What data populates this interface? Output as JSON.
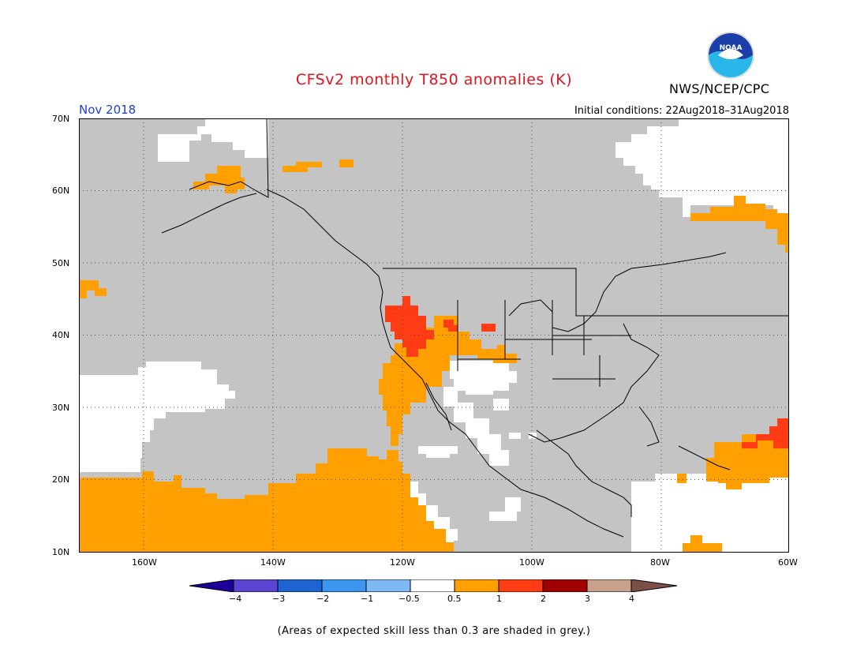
{
  "header": {
    "title": "CFSv2 monthly T850 anomalies (K)",
    "agency": "NWS/NCEP/CPC",
    "logo_text": "NOAA",
    "month": "Nov 2018",
    "initial_conditions": "Initial conditions: 22Aug2018–31Aug2018"
  },
  "map": {
    "lat_labels": [
      "70N",
      "60N",
      "50N",
      "40N",
      "30N",
      "20N",
      "10N"
    ],
    "lon_labels": [
      "160W",
      "140W",
      "120W",
      "100W",
      "80W",
      "60W"
    ],
    "extent": {
      "lon": [
        -170,
        -60
      ],
      "lat": [
        10,
        70
      ]
    },
    "colors": {
      "skill_mask_grey": "#c4c4c4",
      "anom_0_5_to_1": "#ffa000",
      "anom_1_to_2": "#ff3c14",
      "coastline": "#000000"
    }
  },
  "colorbar": {
    "labels": [
      "−4",
      "−3",
      "−2",
      "−1",
      "−0.5",
      "0.5",
      "1",
      "2",
      "3",
      "4"
    ],
    "colors": [
      "#1e0096",
      "#5a46d2",
      "#1e64d2",
      "#3c96f0",
      "#7db9f5",
      "#ffffff",
      "#ffa000",
      "#ff3c14",
      "#a00000",
      "#c8a08c",
      "#7d5046"
    ]
  },
  "footnote": "(Areas of expected skill less than 0.3 are shaded in grey.)"
}
